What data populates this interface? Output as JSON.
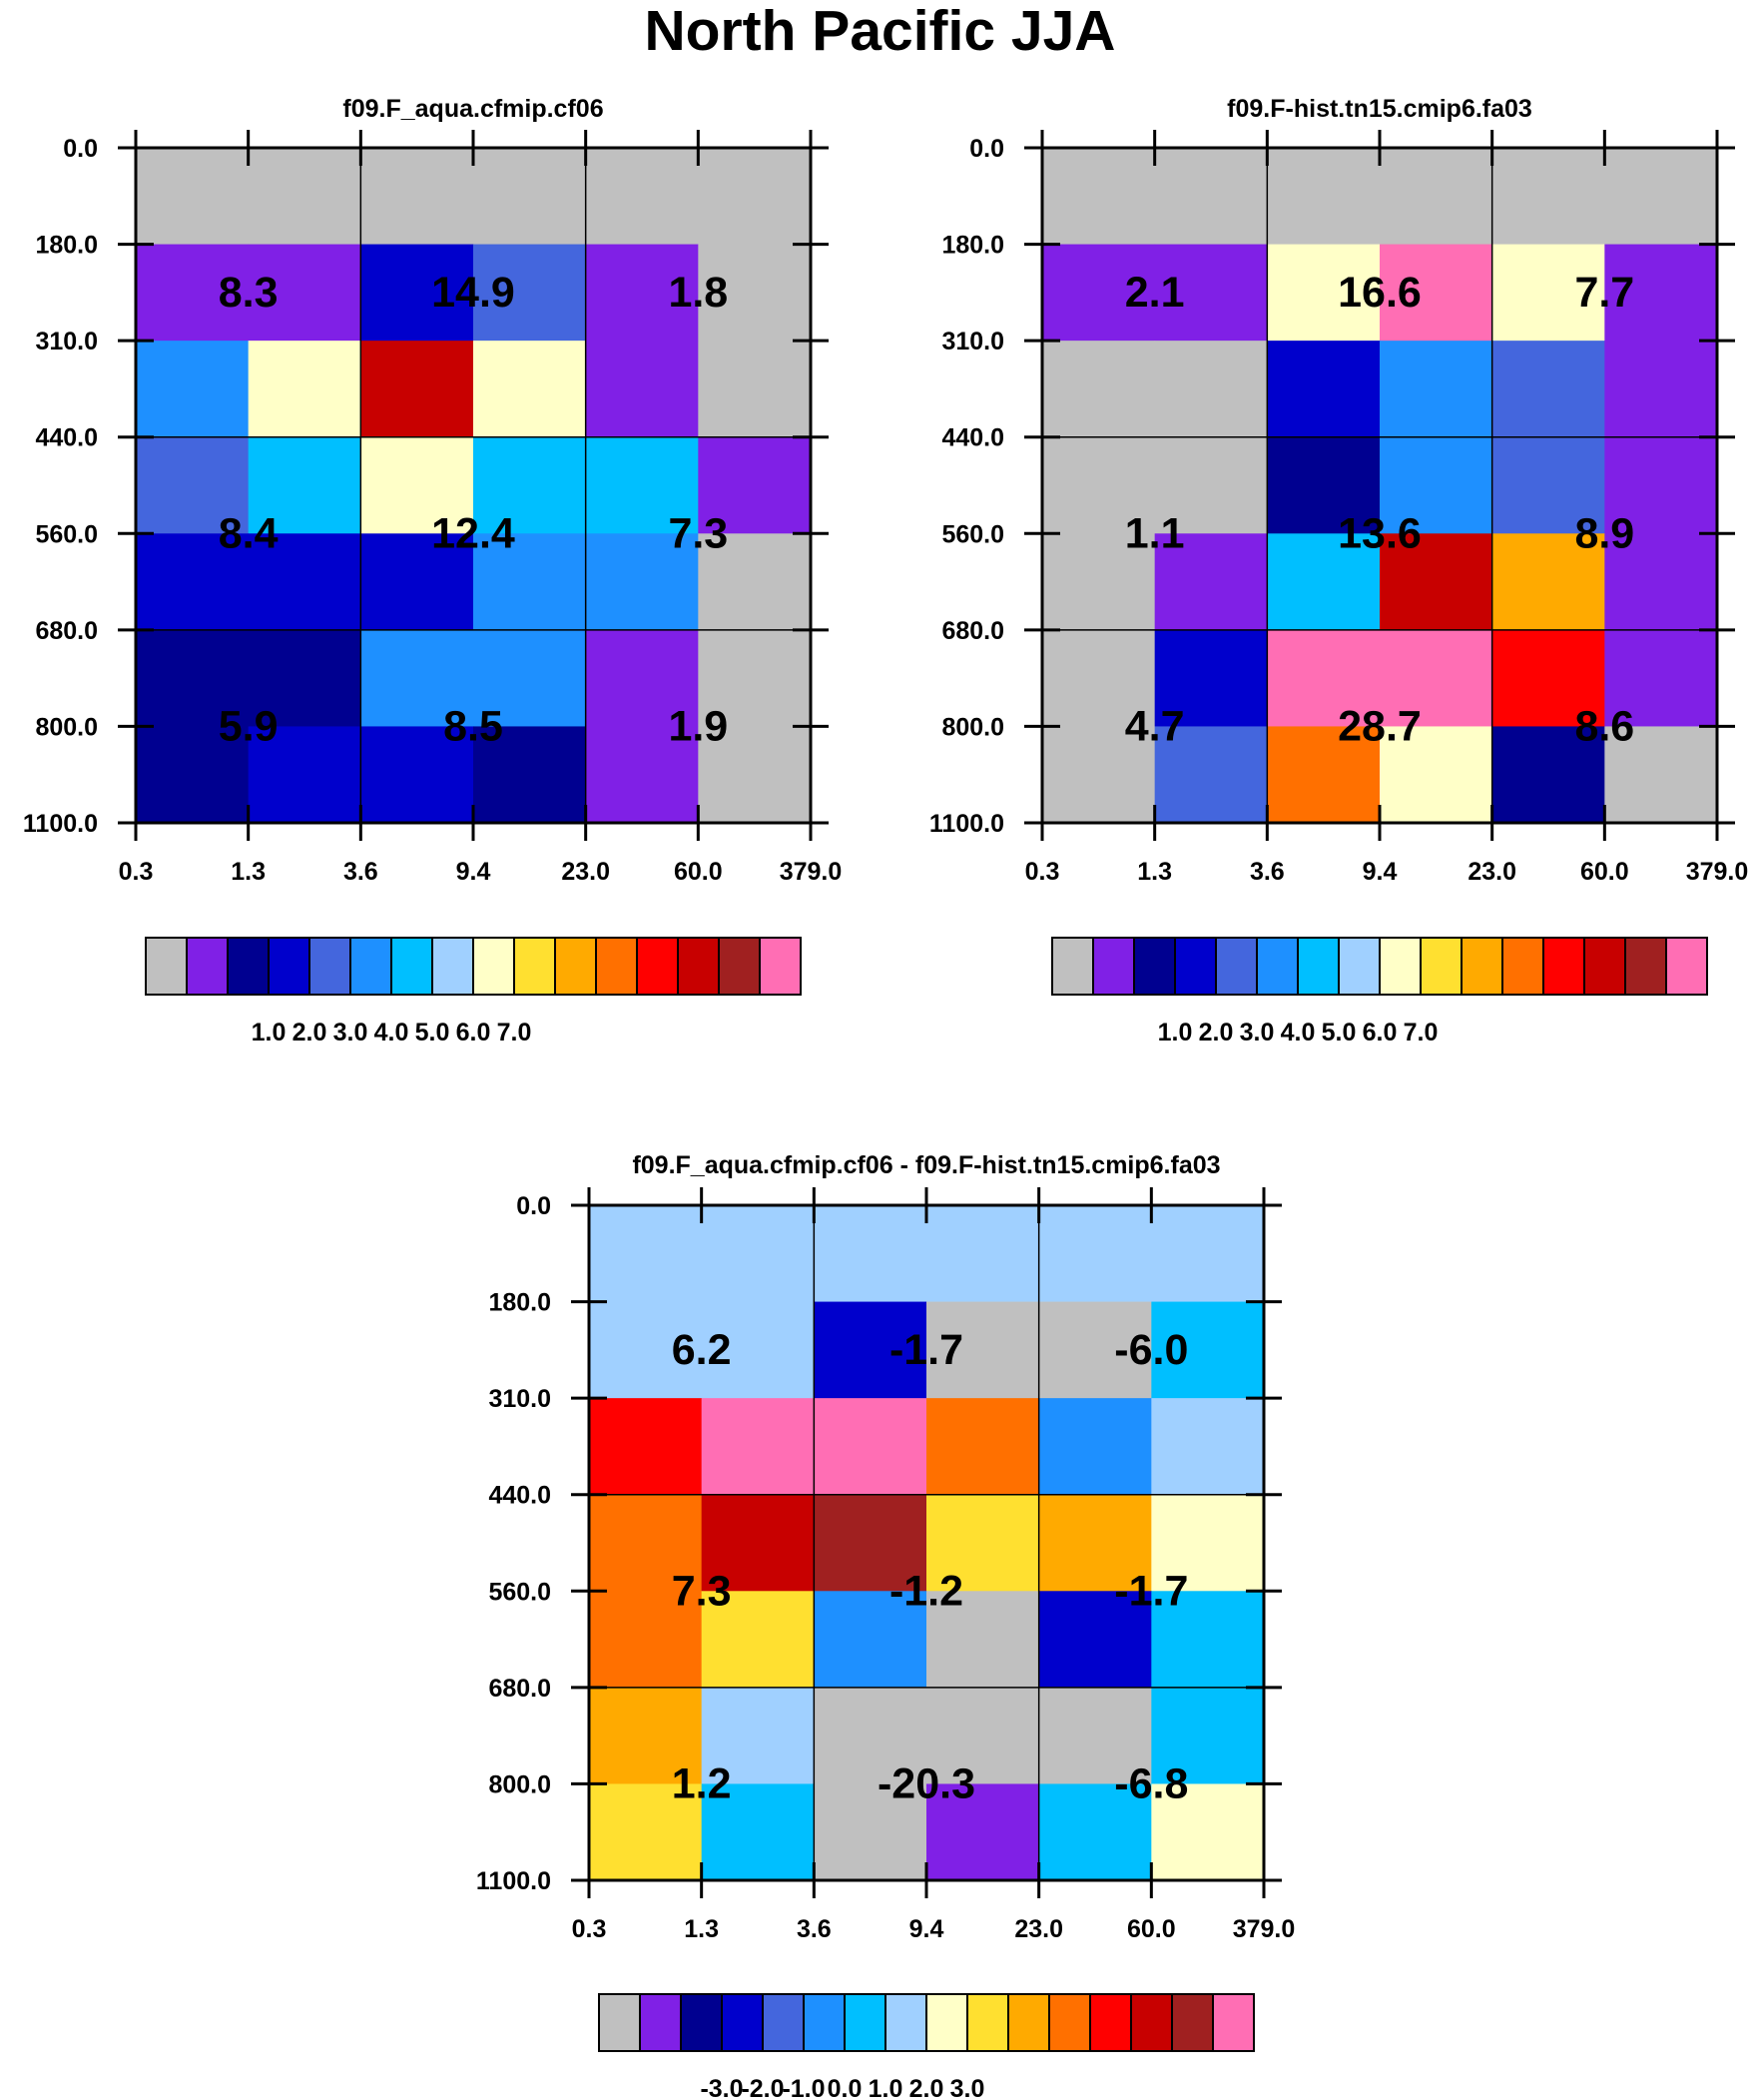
{
  "title": "North Pacific JJA",
  "palette": [
    "#c0c0c0",
    "#8020e6",
    "#000090",
    "#0000cc",
    "#4466dd",
    "#1e90ff",
    "#00bfff",
    "#a0d0ff",
    "#ffffc8",
    "#ffe030",
    "#ffaa00",
    "#ff7000",
    "#ff0000",
    "#c80000",
    "#a02020",
    "#ff6eb4"
  ],
  "chart_data": [
    {
      "type": "heatmap",
      "title": "f09.F_aqua.cfmip.cf06",
      "x_ticks": [
        "0.3",
        "1.3",
        "3.6",
        "9.4",
        "23.0",
        "60.0",
        "379.0"
      ],
      "y_ticks": [
        "0.0",
        "180.0",
        "310.0",
        "440.0",
        "560.0",
        "680.0",
        "800.0",
        "1100.0"
      ],
      "cell_colors": [
        [
          0,
          0,
          0,
          0,
          0,
          0
        ],
        [
          1,
          1,
          3,
          4,
          1,
          0
        ],
        [
          5,
          8,
          13,
          8,
          1,
          0
        ],
        [
          4,
          6,
          8,
          6,
          6,
          1
        ],
        [
          3,
          3,
          3,
          5,
          5,
          0
        ],
        [
          2,
          2,
          5,
          5,
          1,
          0
        ],
        [
          2,
          3,
          3,
          2,
          1,
          0
        ]
      ],
      "box_values": [
        [
          "8.3",
          "14.9",
          "1.8"
        ],
        [
          "8.4",
          "12.4",
          "7.3"
        ],
        [
          "5.9",
          "8.5",
          "1.9"
        ]
      ],
      "legend_labels": [
        "1.0",
        "2.0",
        "3.0",
        "4.0",
        "5.0",
        "6.0",
        "7.0"
      ]
    },
    {
      "type": "heatmap",
      "title": "f09.F-hist.tn15.cmip6.fa03",
      "x_ticks": [
        "0.3",
        "1.3",
        "3.6",
        "9.4",
        "23.0",
        "60.0",
        "379.0"
      ],
      "y_ticks": [
        "0.0",
        "180.0",
        "310.0",
        "440.0",
        "560.0",
        "680.0",
        "800.0",
        "1100.0"
      ],
      "cell_colors": [
        [
          0,
          0,
          0,
          0,
          0,
          0
        ],
        [
          1,
          1,
          8,
          15,
          8,
          1
        ],
        [
          0,
          0,
          3,
          5,
          4,
          1
        ],
        [
          0,
          0,
          2,
          5,
          4,
          1
        ],
        [
          0,
          1,
          6,
          13,
          10,
          1
        ],
        [
          0,
          3,
          15,
          15,
          12,
          1
        ],
        [
          0,
          4,
          11,
          8,
          2,
          0
        ]
      ],
      "box_values": [
        [
          "2.1",
          "16.6",
          "7.7"
        ],
        [
          "1.1",
          "13.6",
          "8.9"
        ],
        [
          "4.7",
          "28.7",
          "8.6"
        ]
      ],
      "legend_labels": [
        "1.0",
        "2.0",
        "3.0",
        "4.0",
        "5.0",
        "6.0",
        "7.0"
      ]
    },
    {
      "type": "heatmap",
      "title": "f09.F_aqua.cfmip.cf06 - f09.F-hist.tn15.cmip6.fa03",
      "x_ticks": [
        "0.3",
        "1.3",
        "3.6",
        "9.4",
        "23.0",
        "60.0",
        "379.0"
      ],
      "y_ticks": [
        "0.0",
        "180.0",
        "310.0",
        "440.0",
        "560.0",
        "680.0",
        "800.0",
        "1100.0"
      ],
      "cell_colors": [
        [
          7,
          7,
          7,
          7,
          7,
          7
        ],
        [
          7,
          7,
          3,
          0,
          0,
          6
        ],
        [
          12,
          15,
          15,
          11,
          5,
          7
        ],
        [
          11,
          13,
          14,
          9,
          10,
          8
        ],
        [
          11,
          9,
          5,
          0,
          3,
          6
        ],
        [
          10,
          7,
          0,
          0,
          0,
          6
        ],
        [
          9,
          6,
          0,
          1,
          6,
          8
        ]
      ],
      "box_values": [
        [
          "6.2",
          "-1.7",
          "-6.0"
        ],
        [
          "7.3",
          "-1.2",
          "-1.7"
        ],
        [
          "1.2",
          "-20.3",
          "-6.8"
        ]
      ],
      "legend_labels": [
        "-3.0",
        "-2.0",
        "-1.0",
        "0.0",
        "1.0",
        "2.0",
        "3.0"
      ]
    }
  ]
}
